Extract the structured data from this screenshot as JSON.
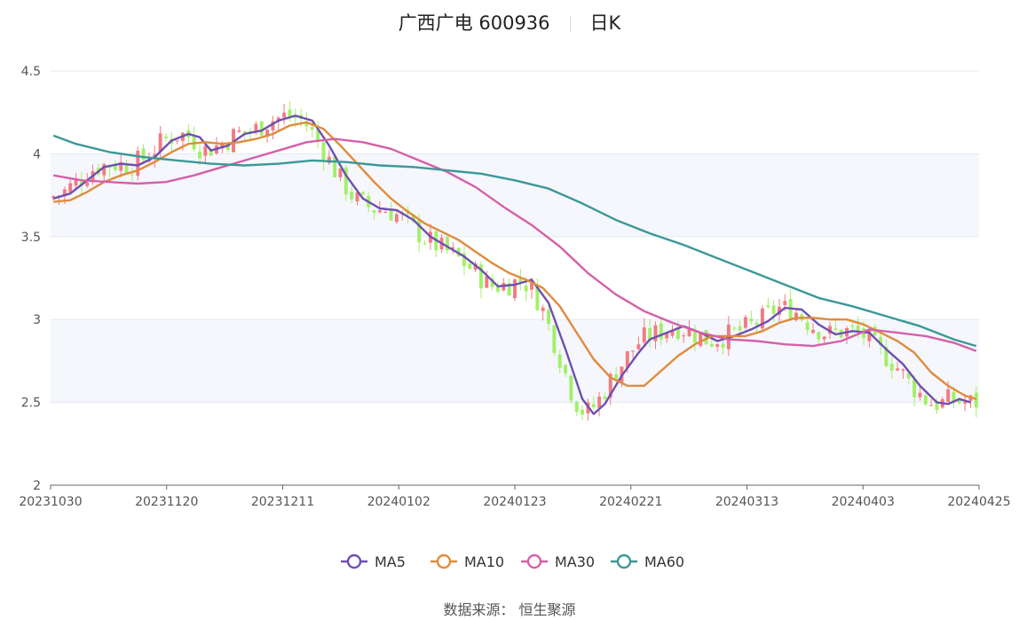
{
  "chart_data": {
    "type": "candlestick",
    "title": "广西广电 600936",
    "period": "日K",
    "ylim": [
      2,
      4.5
    ],
    "yticks": [
      "2",
      "2.5",
      "3",
      "3.5",
      "4",
      "4.5"
    ],
    "xticks": [
      "20231030",
      "20231120",
      "20231211",
      "20240102",
      "20240123",
      "20240221",
      "20240313",
      "20240403",
      "20240425"
    ],
    "legend_position": "bottom-center",
    "series": [
      {
        "name": "MA5",
        "color": "#6f4fb0"
      },
      {
        "name": "MA10",
        "color": "#e08b3c"
      },
      {
        "name": "MA30",
        "color": "#d560a8"
      },
      {
        "name": "MA60",
        "color": "#3c9898"
      }
    ],
    "ma_points": {
      "MA5": [
        [
          0,
          3.73
        ],
        [
          3,
          3.76
        ],
        [
          6,
          3.84
        ],
        [
          9,
          3.92
        ],
        [
          12,
          3.94
        ],
        [
          15,
          3.93
        ],
        [
          18,
          3.98
        ],
        [
          21,
          4.08
        ],
        [
          24,
          4.12
        ],
        [
          26,
          4.1
        ],
        [
          28,
          4.02
        ],
        [
          31,
          4.05
        ],
        [
          34,
          4.12
        ],
        [
          37,
          4.14
        ],
        [
          40,
          4.2
        ],
        [
          43,
          4.23
        ],
        [
          46,
          4.2
        ],
        [
          49,
          4.05
        ],
        [
          52,
          3.87
        ],
        [
          55,
          3.73
        ],
        [
          58,
          3.67
        ],
        [
          61,
          3.66
        ],
        [
          64,
          3.6
        ],
        [
          67,
          3.5
        ],
        [
          70,
          3.44
        ],
        [
          73,
          3.38
        ],
        [
          76,
          3.3
        ],
        [
          79,
          3.2
        ],
        [
          82,
          3.21
        ],
        [
          85,
          3.24
        ],
        [
          88,
          3.1
        ],
        [
          91,
          2.82
        ],
        [
          94,
          2.52
        ],
        [
          96,
          2.43
        ],
        [
          98,
          2.49
        ],
        [
          101,
          2.66
        ],
        [
          104,
          2.8
        ],
        [
          106,
          2.88
        ],
        [
          109,
          2.92
        ],
        [
          112,
          2.96
        ],
        [
          115,
          2.92
        ],
        [
          118,
          2.87
        ],
        [
          121,
          2.9
        ],
        [
          124,
          2.94
        ],
        [
          127,
          2.99
        ],
        [
          130,
          3.07
        ],
        [
          133,
          3.06
        ],
        [
          136,
          2.97
        ],
        [
          139,
          2.91
        ],
        [
          142,
          2.93
        ],
        [
          145,
          2.92
        ],
        [
          148,
          2.82
        ],
        [
          151,
          2.73
        ],
        [
          154,
          2.6
        ],
        [
          157,
          2.5
        ],
        [
          159,
          2.49
        ],
        [
          161,
          2.52
        ],
        [
          163,
          2.5
        ]
      ],
      "MA10": [
        [
          0,
          3.71
        ],
        [
          3,
          3.72
        ],
        [
          6,
          3.77
        ],
        [
          9,
          3.83
        ],
        [
          12,
          3.87
        ],
        [
          15,
          3.9
        ],
        [
          18,
          3.95
        ],
        [
          21,
          4.01
        ],
        [
          24,
          4.06
        ],
        [
          27,
          4.07
        ],
        [
          30,
          4.06
        ],
        [
          33,
          4.07
        ],
        [
          36,
          4.09
        ],
        [
          39,
          4.12
        ],
        [
          42,
          4.17
        ],
        [
          45,
          4.19
        ],
        [
          48,
          4.15
        ],
        [
          51,
          4.05
        ],
        [
          54,
          3.94
        ],
        [
          57,
          3.83
        ],
        [
          60,
          3.73
        ],
        [
          63,
          3.65
        ],
        [
          66,
          3.58
        ],
        [
          69,
          3.53
        ],
        [
          72,
          3.48
        ],
        [
          75,
          3.41
        ],
        [
          78,
          3.34
        ],
        [
          81,
          3.28
        ],
        [
          84,
          3.24
        ],
        [
          87,
          3.19
        ],
        [
          90,
          3.08
        ],
        [
          93,
          2.92
        ],
        [
          96,
          2.76
        ],
        [
          99,
          2.65
        ],
        [
          102,
          2.6
        ],
        [
          105,
          2.6
        ],
        [
          108,
          2.69
        ],
        [
          111,
          2.78
        ],
        [
          114,
          2.85
        ],
        [
          117,
          2.9
        ],
        [
          120,
          2.9
        ],
        [
          123,
          2.9
        ],
        [
          126,
          2.93
        ],
        [
          129,
          2.98
        ],
        [
          132,
          3.01
        ],
        [
          135,
          3.01
        ],
        [
          138,
          3.0
        ],
        [
          141,
          3.0
        ],
        [
          144,
          2.97
        ],
        [
          147,
          2.92
        ],
        [
          150,
          2.87
        ],
        [
          153,
          2.8
        ],
        [
          156,
          2.68
        ],
        [
          159,
          2.6
        ],
        [
          162,
          2.54
        ],
        [
          164,
          2.52
        ]
      ],
      "MA30": [
        [
          0,
          3.87
        ],
        [
          5,
          3.84
        ],
        [
          10,
          3.83
        ],
        [
          15,
          3.82
        ],
        [
          20,
          3.83
        ],
        [
          25,
          3.87
        ],
        [
          30,
          3.92
        ],
        [
          35,
          3.97
        ],
        [
          40,
          4.02
        ],
        [
          45,
          4.07
        ],
        [
          50,
          4.09
        ],
        [
          55,
          4.07
        ],
        [
          60,
          4.03
        ],
        [
          65,
          3.96
        ],
        [
          70,
          3.89
        ],
        [
          75,
          3.8
        ],
        [
          80,
          3.68
        ],
        [
          85,
          3.57
        ],
        [
          90,
          3.44
        ],
        [
          95,
          3.28
        ],
        [
          100,
          3.15
        ],
        [
          105,
          3.05
        ],
        [
          110,
          2.98
        ],
        [
          115,
          2.92
        ],
        [
          120,
          2.88
        ],
        [
          125,
          2.87
        ],
        [
          130,
          2.85
        ],
        [
          135,
          2.84
        ],
        [
          140,
          2.87
        ],
        [
          145,
          2.94
        ],
        [
          150,
          2.92
        ],
        [
          155,
          2.9
        ],
        [
          160,
          2.86
        ],
        [
          164,
          2.81
        ]
      ],
      "MA60": [
        [
          0,
          4.11
        ],
        [
          4,
          4.06
        ],
        [
          10,
          4.01
        ],
        [
          16,
          3.98
        ],
        [
          22,
          3.96
        ],
        [
          28,
          3.94
        ],
        [
          34,
          3.93
        ],
        [
          40,
          3.94
        ],
        [
          46,
          3.96
        ],
        [
          52,
          3.95
        ],
        [
          58,
          3.93
        ],
        [
          64,
          3.92
        ],
        [
          70,
          3.9
        ],
        [
          76,
          3.88
        ],
        [
          82,
          3.84
        ],
        [
          88,
          3.79
        ],
        [
          94,
          3.7
        ],
        [
          100,
          3.6
        ],
        [
          106,
          3.52
        ],
        [
          112,
          3.45
        ],
        [
          118,
          3.37
        ],
        [
          124,
          3.29
        ],
        [
          130,
          3.21
        ],
        [
          136,
          3.13
        ],
        [
          142,
          3.08
        ],
        [
          148,
          3.02
        ],
        [
          154,
          2.96
        ],
        [
          160,
          2.88
        ],
        [
          164,
          2.84
        ]
      ]
    }
  },
  "legend": {
    "ma5": "MA5",
    "ma10": "MA10",
    "ma30": "MA30",
    "ma60": "MA60"
  },
  "footer": {
    "source": "数据来源： 恒生聚源"
  }
}
